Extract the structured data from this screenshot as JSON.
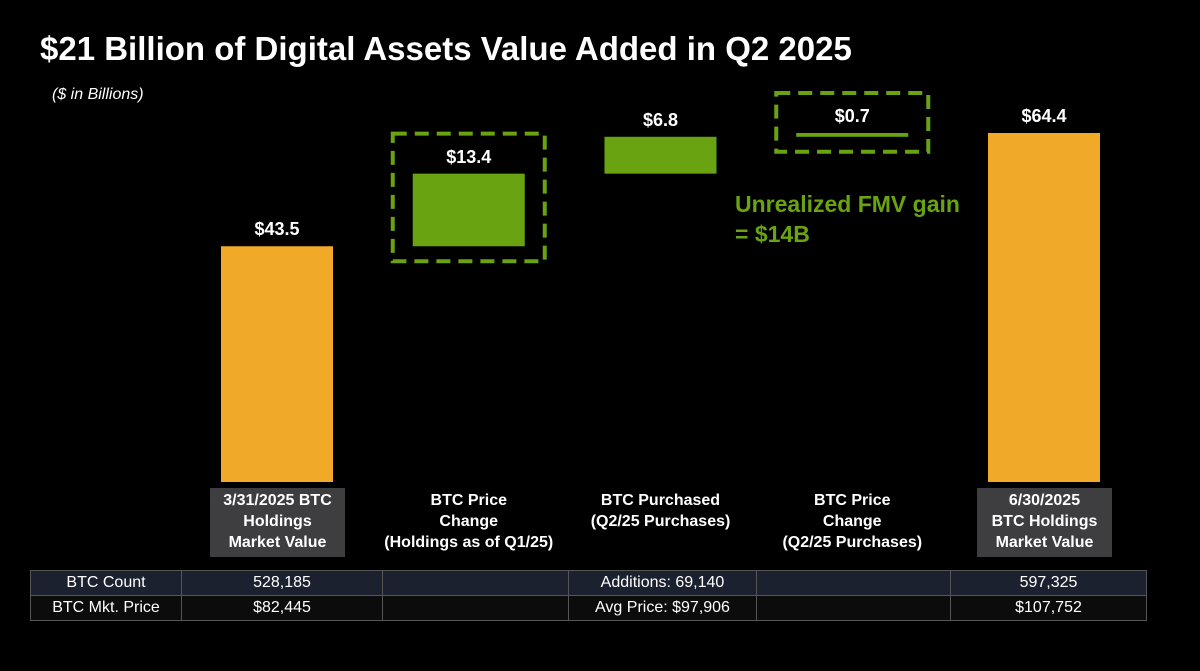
{
  "chart_data": {
    "type": "waterfall",
    "title": "$21 Billion of Digital Assets Value Added in Q2 2025",
    "subtitle": "($ in Billions)",
    "categories": [
      "3/31/2025 BTC\nHoldings\nMarket Value",
      "BTC Price\nChange\n(Holdings as of Q1/25)",
      "BTC Purchased\n(Q2/25 Purchases)",
      "BTC Price\nChange\n(Q2/25 Purchases)",
      "6/30/2025\nBTC Holdings\nMarket Value"
    ],
    "values": [
      43.5,
      13.4,
      6.8,
      0.7,
      64.4
    ],
    "value_labels": [
      "$43.5",
      "$13.4",
      "$6.8",
      "$0.7",
      "$64.4"
    ],
    "is_total": [
      true,
      false,
      false,
      false,
      true
    ],
    "highlighted": [
      false,
      true,
      false,
      true,
      false
    ],
    "colors": [
      "#f0aa28",
      "#6aa312",
      "#6aa312",
      "#6aa312",
      "#f0aa28"
    ],
    "annotation": "Unrealized FMV gain\n= $14B",
    "annotation_color": "#6aa312"
  },
  "table": {
    "rows": [
      [
        "BTC Count",
        "528,185",
        null,
        "Additions: 69,140",
        null,
        "597,325"
      ],
      [
        "BTC Mkt. Price",
        "$82,445",
        null,
        "Avg Price: $97,906",
        null,
        "$107,752"
      ]
    ]
  }
}
